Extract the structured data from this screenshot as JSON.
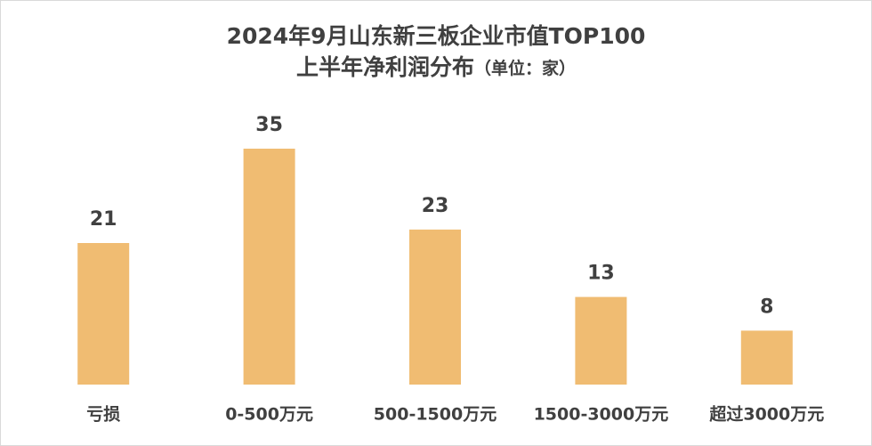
{
  "chart_data": {
    "type": "bar",
    "title": "2024年9月山东新三板企业市值TOP100",
    "subtitle": "上半年净利润分布",
    "unit_note": "（单位：家）",
    "categories": [
      "亏损",
      "0-500万元",
      "500-1500万元",
      "1500-3000万元",
      "超过3000万元"
    ],
    "values": [
      21,
      35,
      23,
      13,
      8
    ],
    "color": "#f0bc72"
  }
}
